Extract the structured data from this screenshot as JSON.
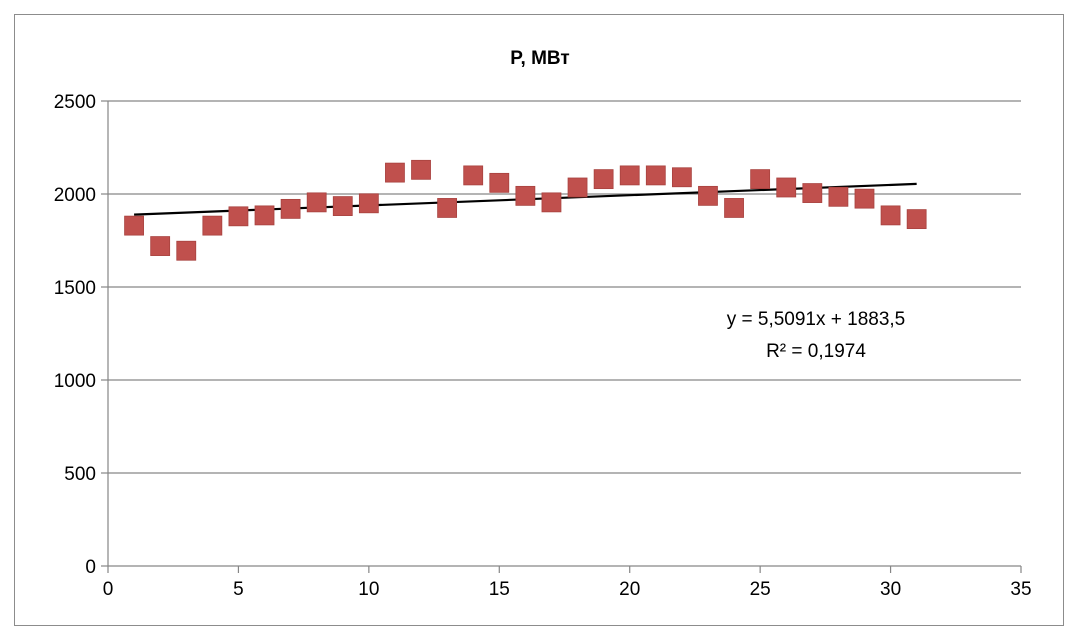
{
  "chart_data": {
    "type": "scatter",
    "title": "P, МВт",
    "xlabel": "",
    "ylabel": "",
    "xlim": [
      0,
      35
    ],
    "ylim": [
      0,
      2500
    ],
    "x_ticks": [
      0,
      5,
      10,
      15,
      20,
      25,
      30,
      35
    ],
    "y_ticks": [
      0,
      500,
      1000,
      1500,
      2000,
      2500
    ],
    "grid": "horizontal",
    "marker": "square",
    "marker_color": "#c0504d",
    "points": [
      {
        "x": 1,
        "y": 1830
      },
      {
        "x": 2,
        "y": 1720
      },
      {
        "x": 3,
        "y": 1695
      },
      {
        "x": 4,
        "y": 1830
      },
      {
        "x": 5,
        "y": 1880
      },
      {
        "x": 6,
        "y": 1885
      },
      {
        "x": 7,
        "y": 1920
      },
      {
        "x": 8,
        "y": 1955
      },
      {
        "x": 9,
        "y": 1935
      },
      {
        "x": 10,
        "y": 1950
      },
      {
        "x": 11,
        "y": 2115
      },
      {
        "x": 12,
        "y": 2130
      },
      {
        "x": 13,
        "y": 1925
      },
      {
        "x": 14,
        "y": 2100
      },
      {
        "x": 15,
        "y": 2060
      },
      {
        "x": 16,
        "y": 1990
      },
      {
        "x": 17,
        "y": 1955
      },
      {
        "x": 18,
        "y": 2035
      },
      {
        "x": 19,
        "y": 2080
      },
      {
        "x": 20,
        "y": 2100
      },
      {
        "x": 21,
        "y": 2100
      },
      {
        "x": 22,
        "y": 2090
      },
      {
        "x": 23,
        "y": 1990
      },
      {
        "x": 24,
        "y": 1925
      },
      {
        "x": 25,
        "y": 2080
      },
      {
        "x": 26,
        "y": 2035
      },
      {
        "x": 27,
        "y": 2005
      },
      {
        "x": 28,
        "y": 1985
      },
      {
        "x": 29,
        "y": 1975
      },
      {
        "x": 30,
        "y": 1885
      },
      {
        "x": 31,
        "y": 1865
      }
    ],
    "trendline": {
      "type": "linear",
      "slope": 5.5091,
      "intercept": 1883.5,
      "x_range": [
        1,
        31
      ],
      "color": "#000000",
      "equation_label": "y = 5,5091x + 1883,5",
      "r2_label": "R² = 0,1974"
    }
  }
}
